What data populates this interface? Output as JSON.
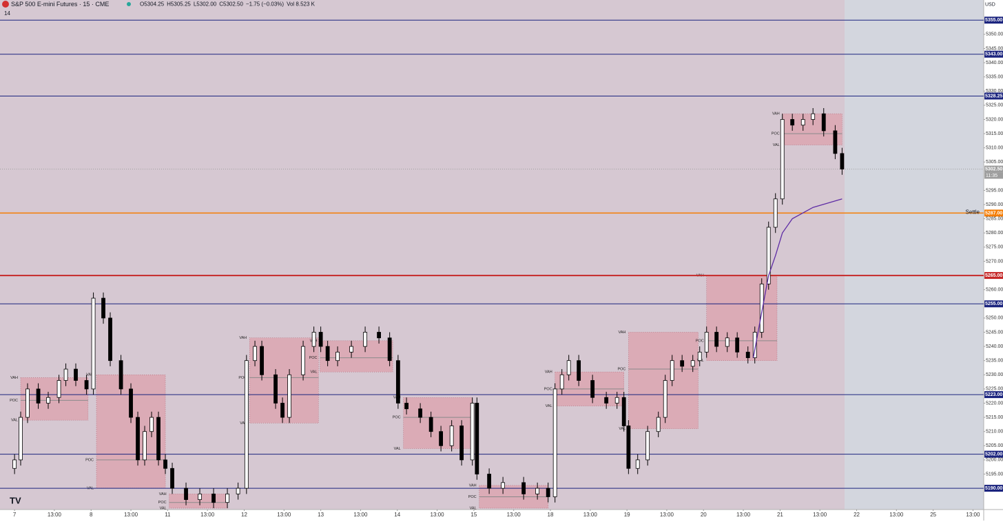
{
  "chart_data": {
    "type": "candlestick",
    "header": {
      "symbol": "S&P 500 E-mini Futures · 15 · CME",
      "values": [
        "O5304.25",
        "H5305.25",
        "L5302.00",
        "C5302.50",
        "−1.75 (−0.03%)",
        "Vol 8.523 K"
      ],
      "indicators": "14",
      "currency": "USD"
    },
    "xlim": [
      -0.19,
      12.66
    ],
    "ylim": [
      5182.5,
      5362.1
    ],
    "grid": false,
    "xticks": [
      {
        "value": 0,
        "label": "7"
      },
      {
        "value": 0.52,
        "label": "13:00"
      },
      {
        "value": 1,
        "label": "8"
      },
      {
        "value": 1.52,
        "label": "13:00"
      },
      {
        "value": 2,
        "label": "11"
      },
      {
        "value": 2.52,
        "label": "13:00"
      },
      {
        "value": 3,
        "label": "12"
      },
      {
        "value": 3.52,
        "label": "13:00"
      },
      {
        "value": 4,
        "label": "13"
      },
      {
        "value": 4.52,
        "label": "13:00"
      },
      {
        "value": 5,
        "label": "14"
      },
      {
        "value": 5.52,
        "label": "13:00"
      },
      {
        "value": 6,
        "label": "15"
      },
      {
        "value": 6.52,
        "label": "13:00"
      },
      {
        "value": 7,
        "label": "18"
      },
      {
        "value": 7.52,
        "label": "13:00"
      },
      {
        "value": 8,
        "label": "19"
      },
      {
        "value": 8.52,
        "label": "13:00"
      },
      {
        "value": 9,
        "label": "20"
      },
      {
        "value": 9.52,
        "label": "13:00"
      },
      {
        "value": 10,
        "label": "21"
      },
      {
        "value": 10.52,
        "label": "13:00"
      },
      {
        "value": 11,
        "label": "22"
      },
      {
        "value": 11.52,
        "label": "13:00"
      },
      {
        "value": 12,
        "label": "25"
      },
      {
        "value": 12.52,
        "label": "13:00"
      }
    ],
    "yticks": [
      {
        "value": 5195,
        "label": "5195.00"
      },
      {
        "value": 5200,
        "label": "5200.00"
      },
      {
        "value": 5205,
        "label": "5205.00"
      },
      {
        "value": 5210,
        "label": "5210.00"
      },
      {
        "value": 5215,
        "label": "5215.00"
      },
      {
        "value": 5220,
        "label": "5220.00"
      },
      {
        "value": 5225,
        "label": "5225.00"
      },
      {
        "value": 5230,
        "label": "5230.00"
      },
      {
        "value": 5235,
        "label": "5235.00"
      },
      {
        "value": 5240,
        "label": "5240.00"
      },
      {
        "value": 5245,
        "label": "5245.00"
      },
      {
        "value": 5250,
        "label": "5250.00"
      },
      {
        "value": 5260,
        "label": "5260.00"
      },
      {
        "value": 5270,
        "label": "5270.00"
      },
      {
        "value": 5275,
        "label": "5275.00"
      },
      {
        "value": 5280,
        "label": "5280.00"
      },
      {
        "value": 5285,
        "label": "5285.00"
      },
      {
        "value": 5290,
        "label": "5290.00"
      },
      {
        "value": 5295,
        "label": "5295.00"
      },
      {
        "value": 5305,
        "label": "5305.00"
      },
      {
        "value": 5310,
        "label": "5310.00"
      },
      {
        "value": 5315,
        "label": "5315.00"
      },
      {
        "value": 5320,
        "label": "5320.00"
      },
      {
        "value": 5325,
        "label": "5325.00"
      },
      {
        "value": 5330,
        "label": "5330.00"
      },
      {
        "value": 5335,
        "label": "5335.00"
      },
      {
        "value": 5340,
        "label": "5340.00"
      },
      {
        "value": 5345,
        "label": "5345.00"
      },
      {
        "value": 5350,
        "label": "5350.00"
      }
    ],
    "up_color": "#ffffff",
    "down_color": "#000000",
    "series": [
      {
        "x": [
          0,
          0.08,
          0.17,
          0.31,
          0.44,
          0.58,
          0.67,
          0.8,
          0.94,
          1.03,
          1.16,
          1.25,
          1.39,
          1.52,
          1.61,
          1.7,
          1.79,
          1.88,
          1.97,
          2.06,
          2.24,
          2.42,
          2.6,
          2.78,
          2.92,
          3.03,
          3.14,
          3.23,
          3.41,
          3.5,
          3.59,
          3.77,
          3.91,
          4.0,
          4.09,
          4.22,
          4.4,
          4.58,
          4.76,
          4.9,
          5.01,
          5.12,
          5.3,
          5.44,
          5.57,
          5.71,
          5.84,
          5.98,
          6.04,
          6.2,
          6.38,
          6.65,
          6.83,
          6.97,
          7.06,
          7.15,
          7.24,
          7.37,
          7.55,
          7.73,
          7.87,
          7.96,
          8.02,
          8.14,
          8.27,
          8.41,
          8.5,
          8.59,
          8.72,
          8.86,
          8.95,
          9.04,
          9.17,
          9.31,
          9.44,
          9.58,
          9.67,
          9.76,
          9.85,
          9.94,
          10.03,
          10.16,
          10.3,
          10.43,
          10.57,
          10.72,
          10.81
        ],
        "open": [
          5197,
          5200,
          5215,
          5225,
          5220,
          5222,
          5228,
          5232,
          5228,
          5225,
          5257,
          5250,
          5235,
          5225,
          5215,
          5200,
          5210,
          5215,
          5200,
          5197,
          5190,
          5186,
          5188,
          5185,
          5188,
          5190,
          5235,
          5240,
          5230,
          5220,
          5215,
          5230,
          5240,
          5245,
          5240,
          5235,
          5238,
          5240,
          5245,
          5243,
          5235,
          5220,
          5218,
          5215,
          5210,
          5205,
          5212,
          5200,
          5220,
          5195,
          5190,
          5192,
          5188,
          5190,
          5187,
          5225,
          5230,
          5235,
          5228,
          5222,
          5220,
          5222,
          5212,
          5197,
          5200,
          5210,
          5215,
          5228,
          5235,
          5233,
          5235,
          5238,
          5245,
          5240,
          5243,
          5238,
          5236,
          5245,
          5262,
          5282,
          5292,
          5320,
          5318,
          5320,
          5322,
          5316,
          5308
        ],
        "high": [
          5202,
          5217,
          5227,
          5227,
          5224,
          5230,
          5234,
          5234,
          5230,
          5259,
          5259,
          5252,
          5237,
          5227,
          5217,
          5212,
          5217,
          5217,
          5202,
          5199,
          5192,
          5190,
          5190,
          5190,
          5192,
          5237,
          5242,
          5242,
          5232,
          5222,
          5232,
          5242,
          5247,
          5247,
          5242,
          5240,
          5242,
          5247,
          5247,
          5245,
          5237,
          5222,
          5220,
          5217,
          5212,
          5214,
          5214,
          5222,
          5222,
          5197,
          5194,
          5194,
          5192,
          5192,
          5227,
          5232,
          5237,
          5237,
          5230,
          5224,
          5224,
          5224,
          5214,
          5202,
          5212,
          5217,
          5230,
          5237,
          5237,
          5237,
          5240,
          5247,
          5247,
          5245,
          5245,
          5240,
          5247,
          5264,
          5284,
          5294,
          5322,
          5322,
          5322,
          5324,
          5324,
          5318,
          5310
        ],
        "low": [
          5195,
          5198,
          5213,
          5218,
          5218,
          5220,
          5226,
          5226,
          5223,
          5223,
          5248,
          5233,
          5223,
          5213,
          5198,
          5198,
          5208,
          5198,
          5195,
          5188,
          5184,
          5184,
          5183,
          5183,
          5186,
          5188,
          5233,
          5228,
          5218,
          5213,
          5213,
          5228,
          5238,
          5238,
          5233,
          5233,
          5236,
          5238,
          5241,
          5233,
          5218,
          5216,
          5213,
          5208,
          5203,
          5203,
          5198,
          5198,
          5193,
          5188,
          5188,
          5186,
          5186,
          5185,
          5185,
          5223,
          5228,
          5226,
          5220,
          5218,
          5218,
          5210,
          5195,
          5195,
          5198,
          5208,
          5213,
          5226,
          5231,
          5231,
          5233,
          5236,
          5238,
          5238,
          5236,
          5234,
          5234,
          5243,
          5260,
          5280,
          5290,
          5316,
          5316,
          5318,
          5314,
          5306,
          5300.5
        ],
        "close": [
          5200,
          5215,
          5225,
          5220,
          5222,
          5228,
          5232,
          5228,
          5225,
          5257,
          5250,
          5235,
          5225,
          5215,
          5200,
          5210,
          5215,
          5200,
          5197,
          5190,
          5186,
          5188,
          5185,
          5188,
          5190,
          5235,
          5240,
          5230,
          5220,
          5215,
          5230,
          5240,
          5245,
          5240,
          5235,
          5238,
          5240,
          5245,
          5243,
          5235,
          5220,
          5218,
          5215,
          5210,
          5205,
          5212,
          5200,
          5220,
          5195,
          5190,
          5192,
          5188,
          5190,
          5187,
          5225,
          5230,
          5235,
          5228,
          5222,
          5220,
          5222,
          5212,
          5197,
          5200,
          5210,
          5215,
          5228,
          5235,
          5233,
          5235,
          5238,
          5245,
          5240,
          5243,
          5238,
          5236,
          5245,
          5262,
          5282,
          5292,
          5320,
          5318,
          5320,
          5322,
          5316,
          5308,
          5302.5
        ]
      }
    ],
    "vwap": {
      "color": "#5e2ca5",
      "x": [
        9.65,
        9.76,
        9.85,
        9.94,
        10.03,
        10.16,
        10.43,
        10.81
      ],
      "values": [
        5236,
        5252,
        5265,
        5272,
        5280,
        5285,
        5289,
        5292
      ]
    },
    "profile_labels": {
      "vah": "VAH",
      "poc": "POC",
      "val": "VAL"
    },
    "profile_color": "#e0949f",
    "value_areas": [
      {
        "x0": 0.08,
        "x1": 0.96,
        "vah": 5229,
        "poc": 5221,
        "val": 5214
      },
      {
        "x0": 1.07,
        "x1": 1.97,
        "vah": 5230,
        "poc": 5200,
        "val": 5190
      },
      {
        "x0": 2.02,
        "x1": 2.78,
        "vah": 5188,
        "poc": 5185,
        "val": 5183
      },
      {
        "x0": 3.07,
        "x1": 3.97,
        "vah": 5243,
        "poc": 5229,
        "val": 5213
      },
      {
        "x0": 3.99,
        "x1": 4.94,
        "vah": 5242,
        "poc": 5236,
        "val": 5231
      },
      {
        "x0": 5.08,
        "x1": 5.98,
        "vah": 5222,
        "poc": 5215,
        "val": 5204
      },
      {
        "x0": 6.07,
        "x1": 6.97,
        "vah": 5191,
        "poc": 5187,
        "val": 5183
      },
      {
        "x0": 7.06,
        "x1": 7.96,
        "vah": 5231,
        "poc": 5225,
        "val": 5219
      },
      {
        "x0": 8.02,
        "x1": 8.93,
        "vah": 5245,
        "poc": 5232,
        "val": 5211
      },
      {
        "x0": 9.04,
        "x1": 9.96,
        "vah": 5265,
        "poc": 5242,
        "val": 5235
      },
      {
        "x0": 10.03,
        "x1": 10.81,
        "vah": 5322,
        "poc": 5315,
        "val": 5311
      }
    ],
    "levels": [
      {
        "value": 5355,
        "label": "5355.00",
        "color": "#1a237e"
      },
      {
        "value": 5343,
        "label": "5343.00",
        "color": "#1a237e"
      },
      {
        "value": 5328.25,
        "label": "5328.25",
        "color": "#1a237e"
      },
      {
        "value": 5302.5,
        "label": "5302.50",
        "color": "#9e9e9e",
        "note": "11:35"
      },
      {
        "value": 5287,
        "label": "5287.00",
        "color": "#f57c00",
        "note": "Settle"
      },
      {
        "value": 5265,
        "label": "5265.00",
        "color": "#c62828"
      },
      {
        "value": 5255,
        "label": "5255.00",
        "color": "#1a237e"
      },
      {
        "value": 5223,
        "label": "5223.00",
        "color": "#1a237e"
      },
      {
        "value": 5202,
        "label": "5202.00",
        "color": "#1a237e"
      },
      {
        "value": 5190,
        "label": "5190.00",
        "color": "#1a237e"
      }
    ]
  }
}
